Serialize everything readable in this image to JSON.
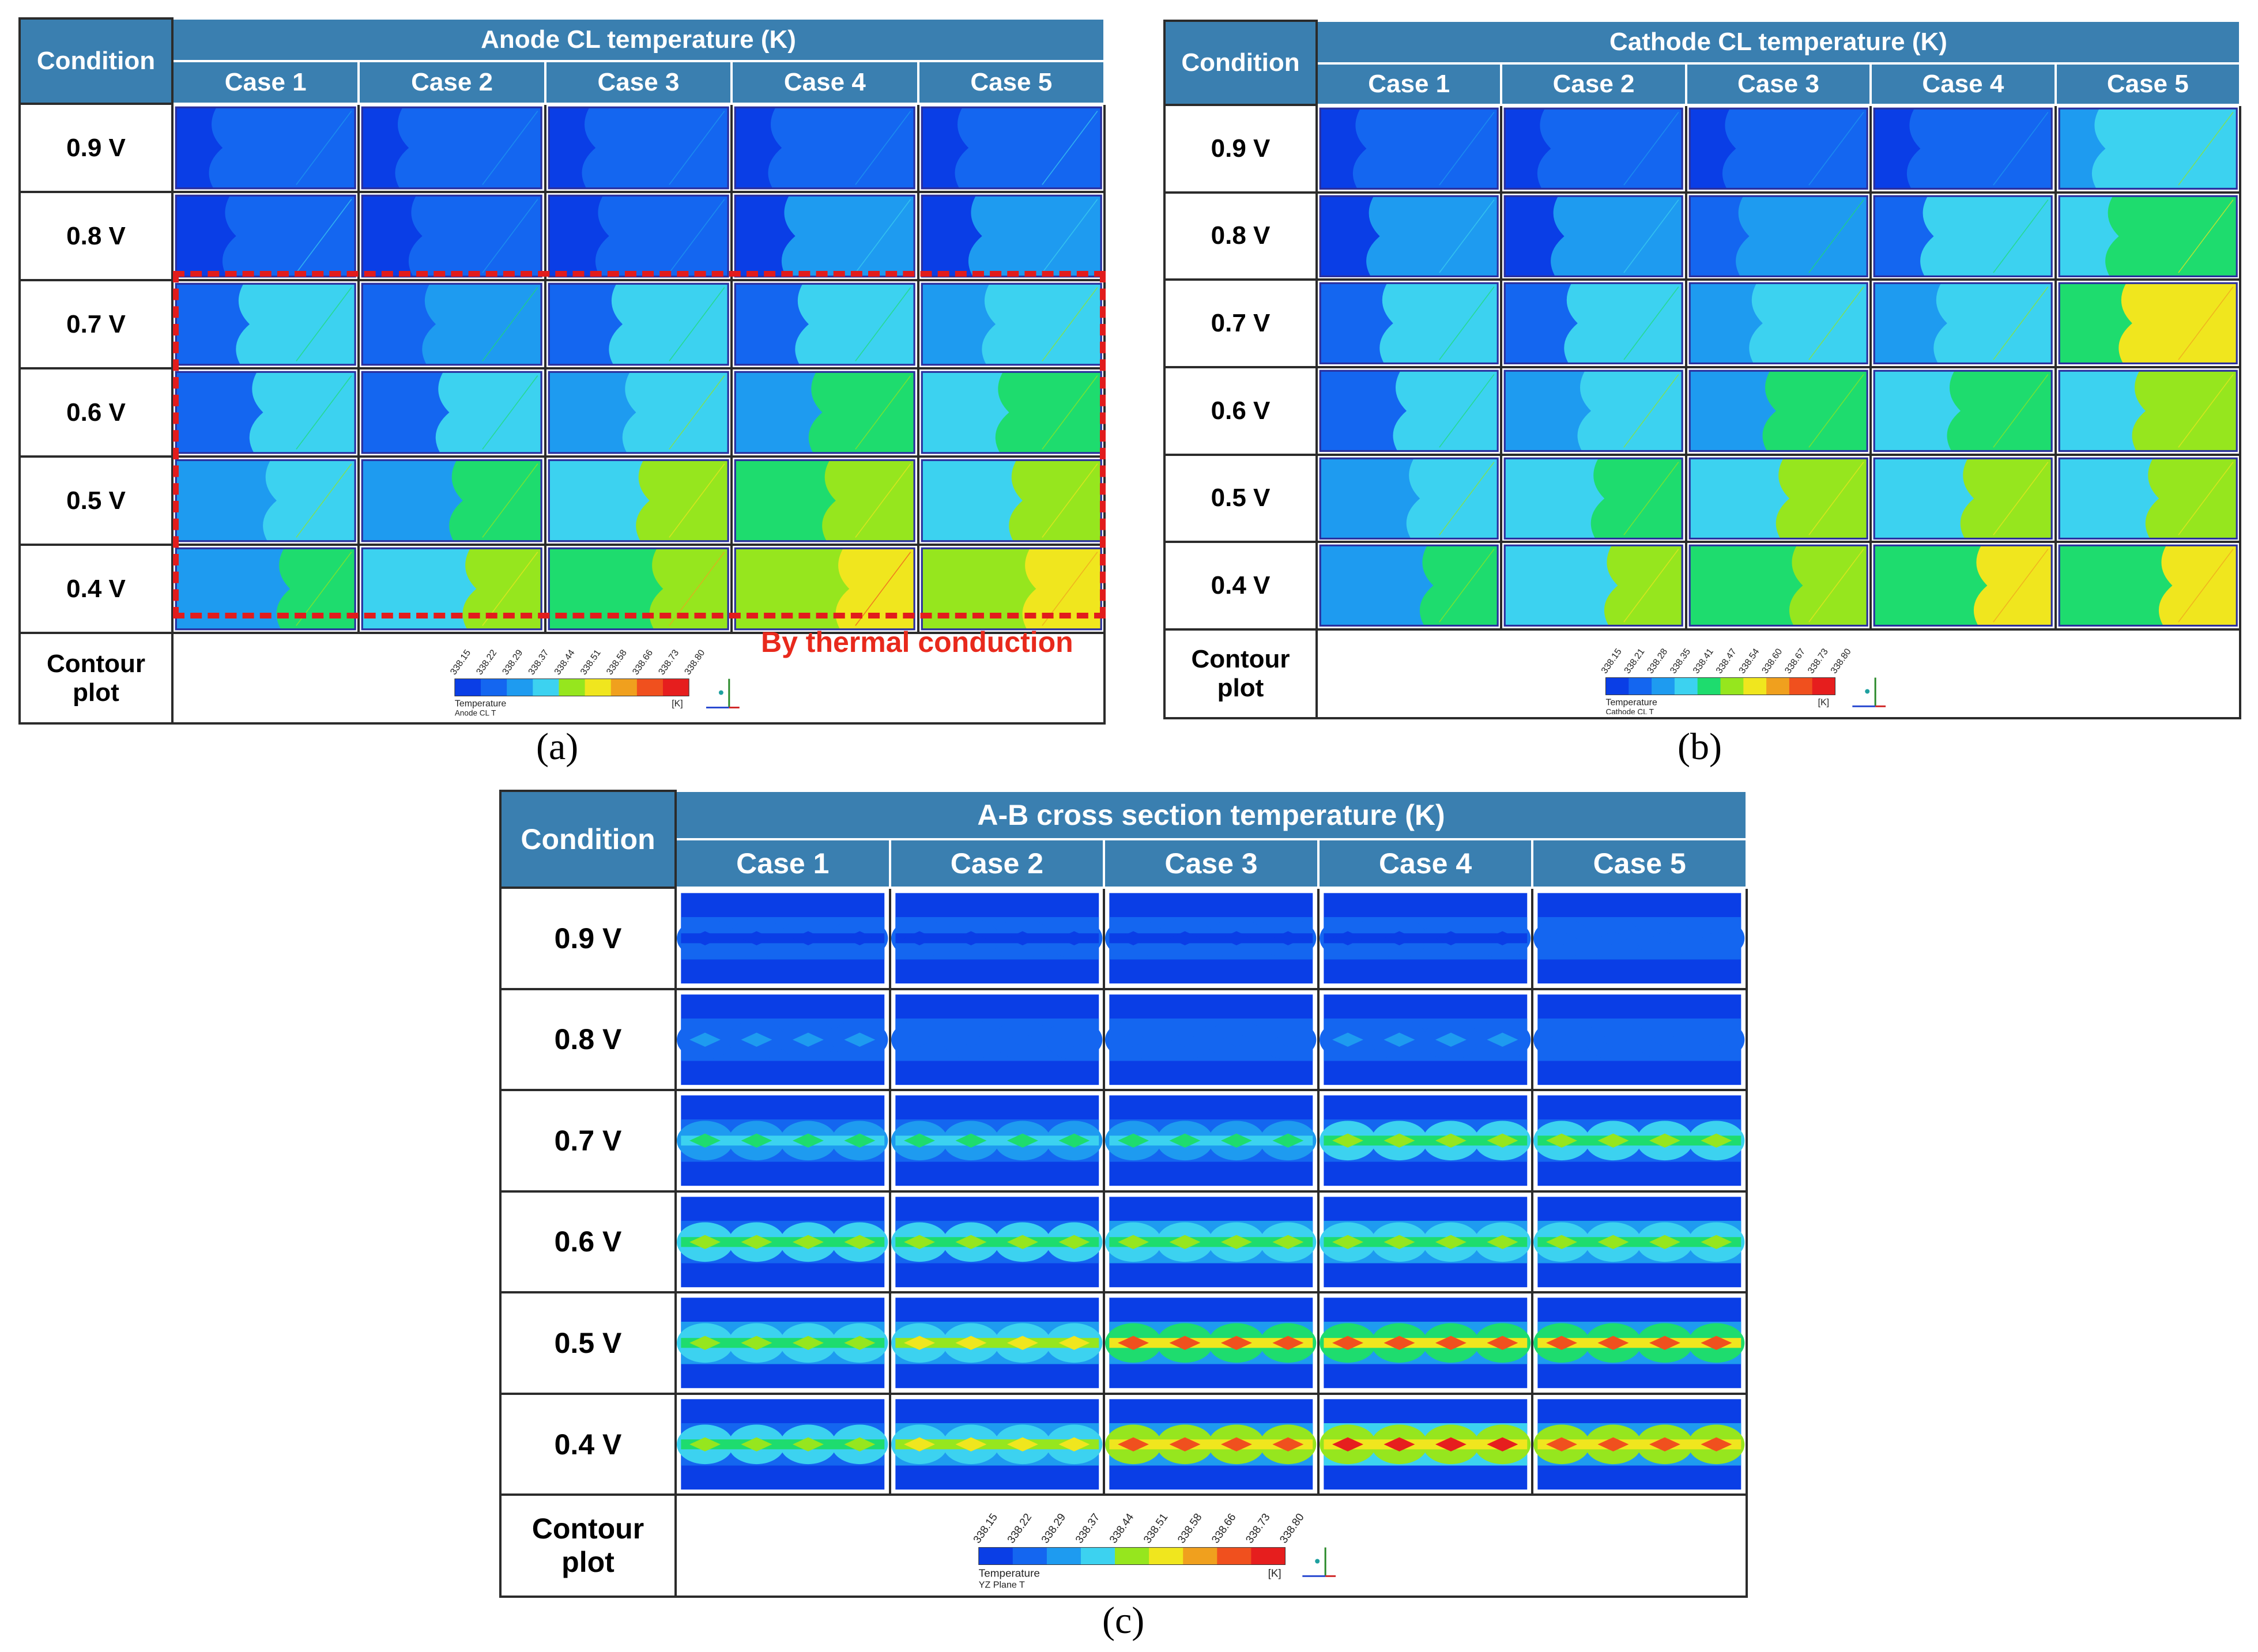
{
  "panels": [
    {
      "id": "a",
      "title": "Anode CL temperature (K)",
      "condition_label": "Condition",
      "cases": [
        "Case 1",
        "Case 2",
        "Case 3",
        "Case 4",
        "Case 5"
      ],
      "rows": [
        "0.9 V",
        "0.8 V",
        "0.7 V",
        "0.6 V",
        "0.5 V",
        "0.4 V"
      ],
      "contour_label": "Contour plot",
      "legend": {
        "ticks": [
          "338.15",
          "338.22",
          "338.29",
          "338.37",
          "338.44",
          "338.51",
          "338.58",
          "338.66",
          "338.73",
          "338.80"
        ],
        "variable": "Temperature",
        "surface": "Anode CL T",
        "unit": "[K]"
      },
      "annotation": "By thermal conduction",
      "caption": "(a)"
    },
    {
      "id": "b",
      "title": "Cathode CL temperature (K)",
      "condition_label": "Condition",
      "cases": [
        "Case 1",
        "Case 2",
        "Case 3",
        "Case 4",
        "Case 5"
      ],
      "rows": [
        "0.9 V",
        "0.8 V",
        "0.7 V",
        "0.6 V",
        "0.5 V",
        "0.4 V"
      ],
      "contour_label": "Contour plot",
      "legend": {
        "ticks": [
          "338.15",
          "338.21",
          "338.28",
          "338.35",
          "338.41",
          "338.47",
          "338.54",
          "338.60",
          "338.67",
          "338.73",
          "338.80"
        ],
        "variable": "Temperature",
        "surface": "Cathode CL T",
        "unit": "[K]"
      },
      "caption": "(b)"
    },
    {
      "id": "c",
      "title": "A-B cross section temperature (K)",
      "condition_label": "Condition",
      "cases": [
        "Case 1",
        "Case 2",
        "Case 3",
        "Case 4",
        "Case 5"
      ],
      "rows": [
        "0.9 V",
        "0.8 V",
        "0.7 V",
        "0.6 V",
        "0.5 V",
        "0.4 V"
      ],
      "contour_label": "Contour plot",
      "legend": {
        "ticks": [
          "338.15",
          "338.22",
          "338.29",
          "338.37",
          "338.44",
          "338.51",
          "338.58",
          "338.66",
          "338.73",
          "338.80"
        ],
        "variable": "Temperature",
        "surface": "YZ Plane T",
        "unit": "[K]"
      },
      "caption": "(c)"
    }
  ],
  "colormap": [
    "#0a3ee6",
    "#1466f0",
    "#1e9bf0",
    "#3cd2f0",
    "#1edc6e",
    "#96e61e",
    "#f0e61e",
    "#f0a01e",
    "#f0501e",
    "#e61e1e"
  ],
  "levels": {
    "a": [
      [
        0.04,
        0.02,
        0.02,
        0.03,
        0.1
      ],
      [
        0.1,
        0.06,
        0.05,
        0.12,
        0.12
      ],
      [
        0.22,
        0.2,
        0.22,
        0.28,
        0.32
      ],
      [
        0.26,
        0.28,
        0.32,
        0.38,
        0.4
      ],
      [
        0.32,
        0.38,
        0.44,
        0.52,
        0.5
      ],
      [
        0.36,
        0.48,
        0.54,
        0.66,
        0.62
      ]
    ],
    "b": [
      [
        0.06,
        0.04,
        0.05,
        0.06,
        0.32
      ],
      [
        0.14,
        0.16,
        0.2,
        0.22,
        0.42
      ],
      [
        0.24,
        0.26,
        0.3,
        0.32,
        0.56
      ],
      [
        0.28,
        0.32,
        0.38,
        0.4,
        0.44
      ],
      [
        0.32,
        0.4,
        0.44,
        0.48,
        0.48
      ],
      [
        0.36,
        0.44,
        0.52,
        0.56,
        0.58
      ]
    ],
    "c": [
      [
        0.05,
        0.05,
        0.04,
        0.05,
        0.12
      ],
      [
        0.18,
        0.16,
        0.14,
        0.18,
        0.16
      ],
      [
        0.45,
        0.45,
        0.48,
        0.55,
        0.55
      ],
      [
        0.52,
        0.55,
        0.6,
        0.6,
        0.6
      ],
      [
        0.58,
        0.68,
        0.85,
        0.88,
        0.85
      ],
      [
        0.55,
        0.68,
        0.92,
        0.95,
        0.92
      ]
    ]
  }
}
